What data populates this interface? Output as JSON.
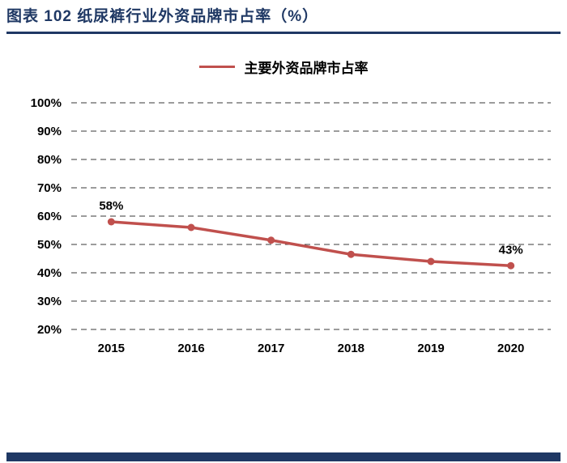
{
  "header": {
    "title": "图表 102  纸尿裤行业外资品牌市占率（%）"
  },
  "legend": {
    "label": "主要外资品牌市占率"
  },
  "colors": {
    "accent_navy": "#1F3864",
    "line_red": "#C0504D",
    "grid": "#3a3a3a"
  },
  "chart_data": {
    "type": "line",
    "title": "纸尿裤行业外资品牌市占率（%）",
    "categories": [
      "2015",
      "2016",
      "2017",
      "2018",
      "2019",
      "2020"
    ],
    "series": [
      {
        "name": "主要外资品牌市占率",
        "values": [
          58,
          56,
          51.5,
          46.5,
          44,
          42.5
        ]
      }
    ],
    "xlabel": "",
    "ylabel": "",
    "ylim": [
      20,
      100
    ],
    "ytick_step": 10,
    "ytick_labels": [
      "100%",
      "90%",
      "80%",
      "70%",
      "60%",
      "50%",
      "40%",
      "30%",
      "20%"
    ],
    "annotations": [
      {
        "x": "2015",
        "text": "58%"
      },
      {
        "x": "2020",
        "text": "43%"
      }
    ],
    "grid": "dashed-horizontal",
    "legend_position": "top-center"
  }
}
